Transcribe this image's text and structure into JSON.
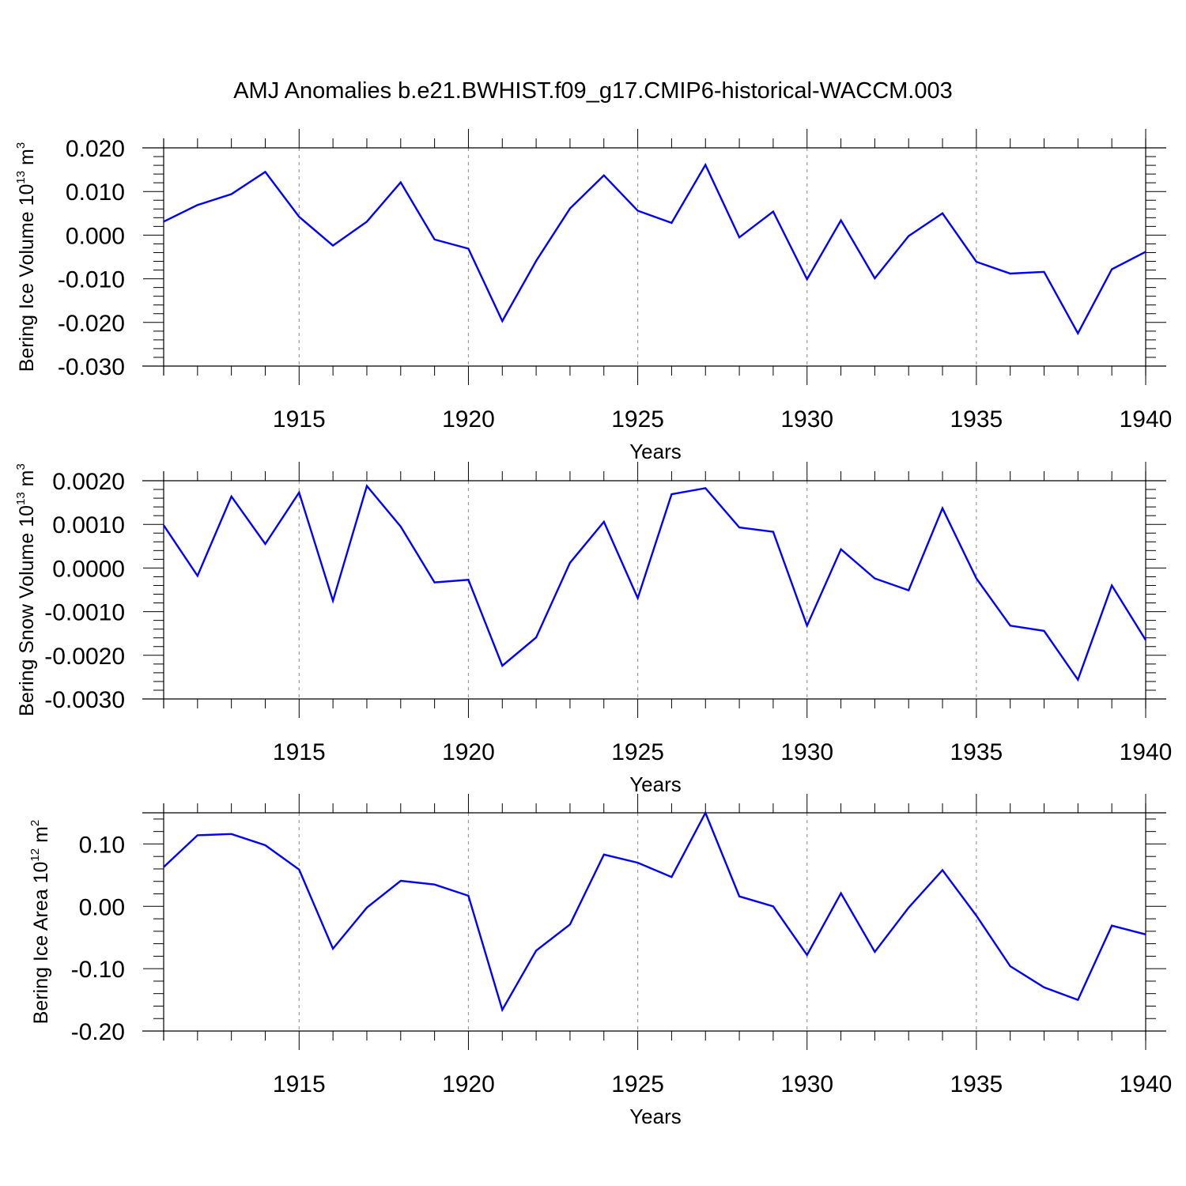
{
  "title": "AMJ Anomalies b.e21.BWHIST.f09_g17.CMIP6-historical-WACCM.003",
  "colors": {
    "line": "#0000ff",
    "axis": "#000000",
    "grid": "#9a9a9a"
  },
  "chart_data": [
    {
      "type": "line",
      "name": "ice-volume",
      "ylabel_prefix": "Bering Ice Volume 10",
      "ylabel_exp": "13",
      "ylabel_unit": " m",
      "ylabel_unit_exp": "3",
      "xlabel": "Years",
      "xlim": [
        1911,
        1940
      ],
      "ylim": [
        -0.03,
        0.02
      ],
      "xticks": [
        "1915",
        "1920",
        "1925",
        "1930",
        "1935",
        "1940"
      ],
      "yticks": [
        "0.020",
        "0.010",
        "0.000",
        "-0.010",
        "-0.020",
        "-0.030"
      ],
      "ytick_values": [
        0.02,
        0.01,
        0.0,
        -0.01,
        -0.02,
        -0.03
      ],
      "x": [
        1911,
        1912,
        1913,
        1914,
        1915,
        1916,
        1917,
        1918,
        1919,
        1920,
        1921,
        1922,
        1923,
        1924,
        1925,
        1926,
        1927,
        1928,
        1929,
        1930,
        1931,
        1932,
        1933,
        1934,
        1935,
        1936,
        1937,
        1938,
        1939,
        1940
      ],
      "values": [
        0.0031,
        0.0069,
        0.0094,
        0.0145,
        0.0042,
        -0.0024,
        0.0031,
        0.0121,
        -0.001,
        -0.0031,
        -0.0197,
        -0.0059,
        0.0061,
        0.0137,
        0.0056,
        0.0028,
        0.0161,
        -0.0005,
        0.0054,
        -0.0101,
        0.0034,
        -0.0099,
        -0.0002,
        0.005,
        -0.0061,
        -0.0088,
        -0.0084,
        -0.0225,
        -0.0078,
        -0.0038
      ]
    },
    {
      "type": "line",
      "name": "snow-volume",
      "ylabel_prefix": "Bering Snow Volume 10",
      "ylabel_exp": "13",
      "ylabel_unit": " m",
      "ylabel_unit_exp": "3",
      "xlabel": "Years",
      "xlim": [
        1911,
        1940
      ],
      "ylim": [
        -0.003,
        0.002
      ],
      "xticks": [
        "1915",
        "1920",
        "1925",
        "1930",
        "1935",
        "1940"
      ],
      "yticks": [
        "0.0020",
        "0.0010",
        "0.0000",
        "-0.0010",
        "-0.0020",
        "-0.0030"
      ],
      "ytick_values": [
        0.002,
        0.001,
        0.0,
        -0.001,
        -0.002,
        -0.003
      ],
      "x": [
        1911,
        1912,
        1913,
        1914,
        1915,
        1916,
        1917,
        1918,
        1919,
        1920,
        1921,
        1922,
        1923,
        1924,
        1925,
        1926,
        1927,
        1928,
        1929,
        1930,
        1931,
        1932,
        1933,
        1934,
        1935,
        1936,
        1937,
        1938,
        1939,
        1940
      ],
      "values": [
        0.00098,
        -0.00018,
        0.00164,
        0.00055,
        0.00173,
        -0.00075,
        0.00188,
        0.00095,
        -0.00033,
        -0.00027,
        -0.00224,
        -0.00159,
        0.00012,
        0.00106,
        -0.00069,
        0.00169,
        0.00183,
        0.00093,
        0.00083,
        -0.00132,
        0.00043,
        -0.00024,
        -0.00051,
        0.00137,
        -0.00024,
        -0.00132,
        -0.00144,
        -0.00256,
        -0.0004,
        -0.00165
      ]
    },
    {
      "type": "line",
      "name": "ice-area",
      "ylabel_prefix": "Bering Ice Area 10",
      "ylabel_exp": "12",
      "ylabel_unit": " m",
      "ylabel_unit_exp": "2",
      "xlabel": "Years",
      "xlim": [
        1911,
        1940
      ],
      "ylim": [
        -0.2,
        0.15
      ],
      "xticks": [
        "1915",
        "1920",
        "1925",
        "1930",
        "1935",
        "1940"
      ],
      "yticks": [
        "0.10",
        "0.00",
        "-0.10",
        "-0.20"
      ],
      "ytick_values": [
        0.1,
        0.0,
        -0.1,
        -0.2
      ],
      "x": [
        1911,
        1912,
        1913,
        1914,
        1915,
        1916,
        1917,
        1918,
        1919,
        1920,
        1921,
        1922,
        1923,
        1924,
        1925,
        1926,
        1927,
        1928,
        1929,
        1930,
        1931,
        1932,
        1933,
        1934,
        1935,
        1936,
        1937,
        1938,
        1939,
        1940
      ],
      "values": [
        0.063,
        0.114,
        0.116,
        0.098,
        0.059,
        -0.068,
        -0.002,
        0.041,
        0.035,
        0.017,
        -0.166,
        -0.071,
        -0.029,
        0.083,
        0.07,
        0.047,
        0.15,
        0.016,
        0.0,
        -0.078,
        0.021,
        -0.073,
        -0.002,
        0.058,
        -0.015,
        -0.096,
        -0.13,
        -0.15,
        -0.031,
        -0.045
      ]
    }
  ]
}
